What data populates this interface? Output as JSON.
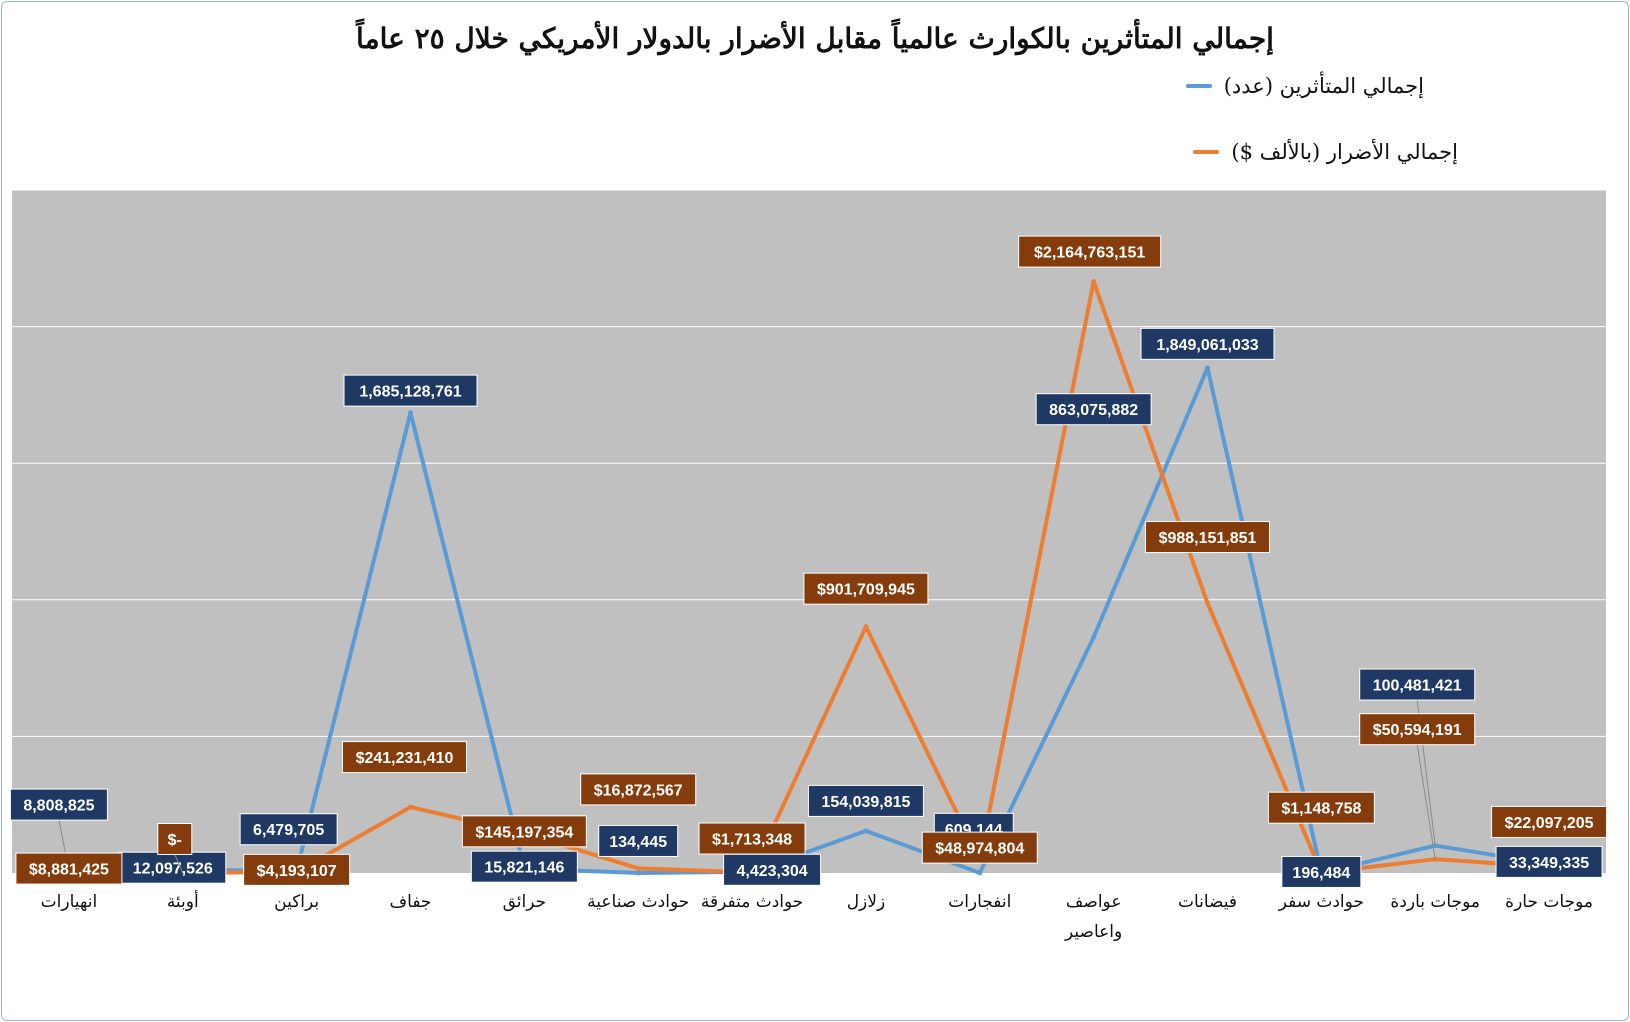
{
  "title": "إجمالي المتأثرين بالكوارث عالمياً مقابل الأضرار بالدولار الأمريكي خلال ٢٥ عاماً",
  "colors": {
    "affected": "#5b9bd5",
    "damages": "#ed7d31",
    "plot_bg": "#c0c0c0",
    "label_blue": "#1f3864",
    "label_orange": "#843c0c",
    "grid": "#ffffff"
  },
  "chart_data": {
    "type": "line",
    "categories": [
      "انهيارات",
      "أوبئة",
      "براكين",
      "جفاف",
      "حرائق",
      "حوادث صناعية",
      "حوادث متفرقة",
      "زلازل",
      "انفجارات",
      "عواصف واعاصير",
      "فيضانات",
      "حوادث سفر",
      "موجات باردة",
      "موجات حارة"
    ],
    "series": [
      {
        "name": "إجمالي المتأثرين (عدد)",
        "color": "#5b9bd5",
        "values": [
          8808825,
          12097526,
          6479705,
          1685128761,
          15821146,
          134445,
          4423304,
          154039815,
          609144,
          863075882,
          1849061033,
          196484,
          100481421,
          33349335
        ],
        "labels": [
          "8,808,825",
          "12,097,526",
          "6,479,705",
          "1,685,128,761",
          "15,821,146",
          "134,445",
          "4,423,304",
          "154,039,815",
          "609,144",
          "863,075,882",
          "1,849,061,033",
          "196,484",
          "100,481,421",
          "33,349,335"
        ]
      },
      {
        "name": "إجمالي الأضرار (بالألف $)",
        "color": "#ed7d31",
        "values": [
          8881425,
          0,
          4193107,
          241231410,
          145197354,
          16872567,
          1713348,
          901709945,
          48974804,
          2164763151,
          988151851,
          1148758,
          50594191,
          22097205
        ],
        "labels": [
          "$8,881,425",
          "$-",
          "$4,193,107",
          "$241,231,410",
          "$145,197,354",
          "$16,872,567",
          "$1,713,348",
          "$901,709,945",
          "$48,974,804",
          "$2,164,763,151",
          "$988,151,851",
          "$1,148,758",
          "$50,594,191",
          "$22,097,205"
        ]
      }
    ],
    "ylim": [
      0,
      2500000000
    ],
    "grid": true,
    "legend_position": "top-right"
  }
}
